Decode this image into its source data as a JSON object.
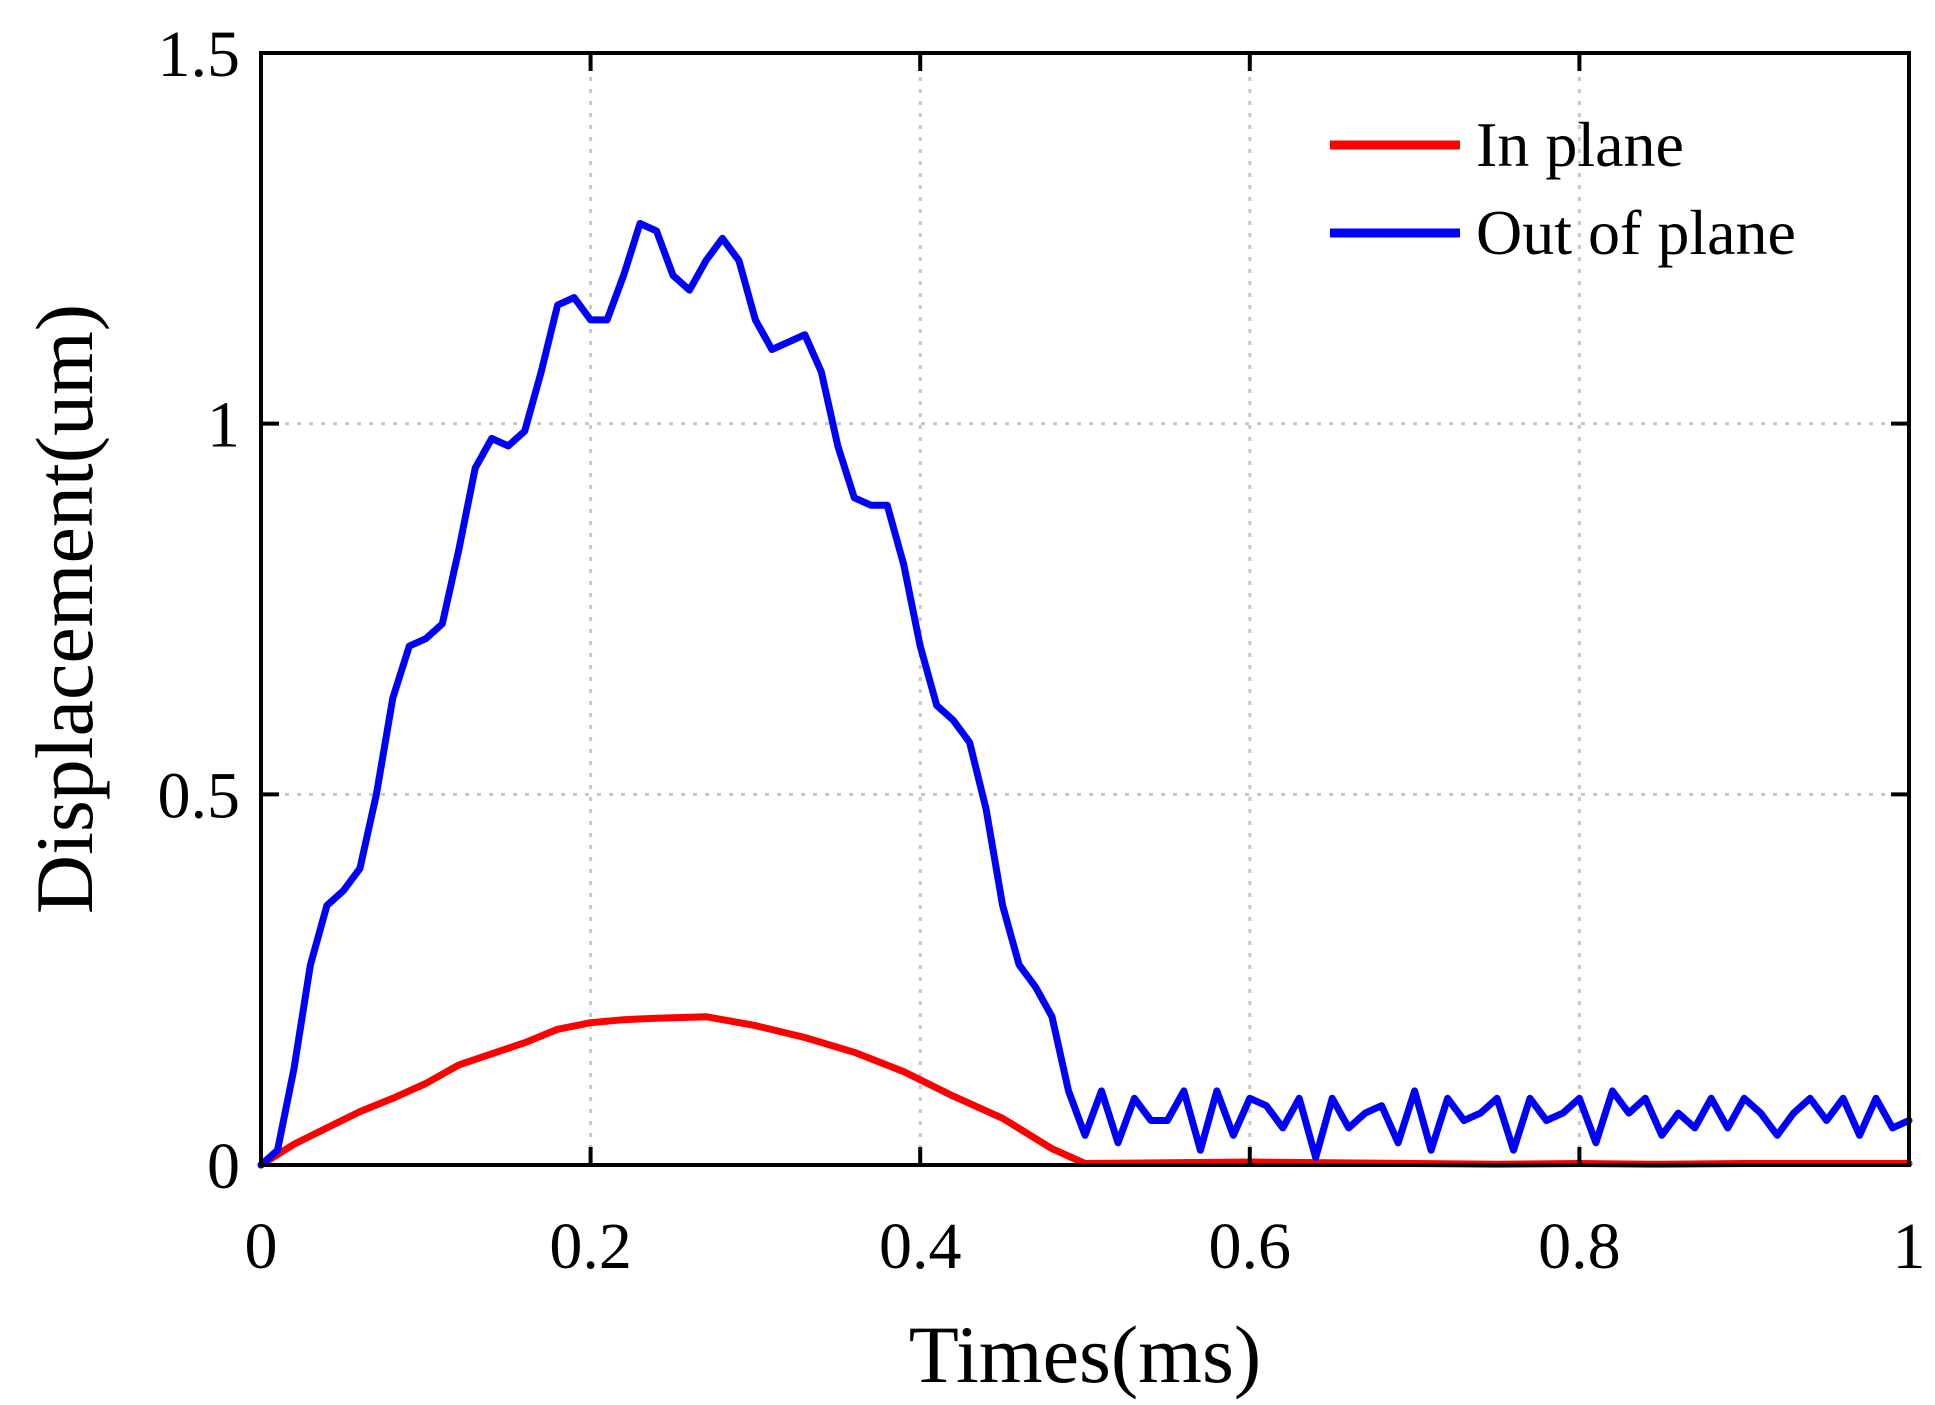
{
  "chart_data": {
    "type": "line",
    "title": "",
    "xlabel": "Times(ms)",
    "ylabel": "Displacement(um)",
    "xlim": [
      0,
      1
    ],
    "ylim": [
      0,
      1.5
    ],
    "xticks": [
      0,
      0.2,
      0.4,
      0.6,
      0.8,
      1
    ],
    "xtick_labels": [
      "0",
      "0.2",
      "0.4",
      "0.6",
      "0.8",
      "1"
    ],
    "yticks": [
      0,
      0.5,
      1,
      1.5
    ],
    "ytick_labels": [
      "0",
      "0.5",
      "1",
      "1.5"
    ],
    "grid": true,
    "legend": "top-right",
    "series": [
      {
        "name": "In plane",
        "color": "#ff0000",
        "x": [
          0,
          0.02,
          0.04,
          0.06,
          0.08,
          0.1,
          0.12,
          0.14,
          0.16,
          0.18,
          0.2,
          0.22,
          0.24,
          0.27,
          0.3,
          0.33,
          0.36,
          0.39,
          0.42,
          0.45,
          0.48,
          0.5,
          0.55,
          0.6,
          0.65,
          0.7,
          0.75,
          0.8,
          0.85,
          0.9,
          0.95,
          1.0
        ],
        "values": [
          0,
          0.028,
          0.05,
          0.072,
          0.09,
          0.11,
          0.135,
          0.15,
          0.165,
          0.183,
          0.192,
          0.196,
          0.198,
          0.2,
          0.188,
          0.172,
          0.152,
          0.126,
          0.093,
          0.063,
          0.022,
          0.002,
          0.003,
          0.004,
          0.003,
          0.002,
          0.001,
          0.002,
          0.001,
          0.002,
          0.002,
          0.002
        ]
      },
      {
        "name": "Out of plane",
        "color": "#0000ff",
        "x": [
          0,
          0.01,
          0.02,
          0.03,
          0.04,
          0.05,
          0.06,
          0.07,
          0.08,
          0.09,
          0.1,
          0.11,
          0.12,
          0.13,
          0.14,
          0.15,
          0.16,
          0.17,
          0.18,
          0.19,
          0.2,
          0.21,
          0.22,
          0.23,
          0.24,
          0.25,
          0.26,
          0.27,
          0.28,
          0.29,
          0.3,
          0.31,
          0.32,
          0.33,
          0.34,
          0.35,
          0.36,
          0.37,
          0.38,
          0.39,
          0.4,
          0.41,
          0.42,
          0.43,
          0.44,
          0.45,
          0.46,
          0.47,
          0.48,
          0.49,
          0.5,
          0.51,
          0.52,
          0.53,
          0.54,
          0.55,
          0.56,
          0.57,
          0.58,
          0.59,
          0.6,
          0.61,
          0.62,
          0.63,
          0.64,
          0.65,
          0.66,
          0.67,
          0.68,
          0.69,
          0.7,
          0.71,
          0.72,
          0.73,
          0.74,
          0.75,
          0.76,
          0.77,
          0.78,
          0.79,
          0.8,
          0.81,
          0.82,
          0.83,
          0.84,
          0.85,
          0.86,
          0.87,
          0.88,
          0.89,
          0.9,
          0.91,
          0.92,
          0.93,
          0.94,
          0.95,
          0.96,
          0.97,
          0.98,
          0.99,
          1.0
        ],
        "values": [
          0,
          0.02,
          0.13,
          0.27,
          0.35,
          0.37,
          0.4,
          0.5,
          0.63,
          0.7,
          0.71,
          0.73,
          0.83,
          0.94,
          0.98,
          0.97,
          0.99,
          1.07,
          1.16,
          1.17,
          1.14,
          1.14,
          1.2,
          1.27,
          1.26,
          1.2,
          1.18,
          1.22,
          1.25,
          1.22,
          1.14,
          1.1,
          1.11,
          1.12,
          1.07,
          0.97,
          0.9,
          0.89,
          0.89,
          0.81,
          0.7,
          0.62,
          0.6,
          0.57,
          0.48,
          0.35,
          0.27,
          0.24,
          0.2,
          0.1,
          0.04,
          0.1,
          0.03,
          0.09,
          0.06,
          0.06,
          0.1,
          0.02,
          0.1,
          0.04,
          0.09,
          0.08,
          0.05,
          0.09,
          0.01,
          0.09,
          0.05,
          0.07,
          0.08,
          0.03,
          0.1,
          0.02,
          0.09,
          0.06,
          0.07,
          0.09,
          0.02,
          0.09,
          0.06,
          0.07,
          0.09,
          0.03,
          0.1,
          0.07,
          0.09,
          0.04,
          0.07,
          0.05,
          0.09,
          0.05,
          0.09,
          0.07,
          0.04,
          0.07,
          0.09,
          0.06,
          0.09,
          0.04,
          0.09,
          0.05,
          0.06
        ]
      }
    ]
  }
}
